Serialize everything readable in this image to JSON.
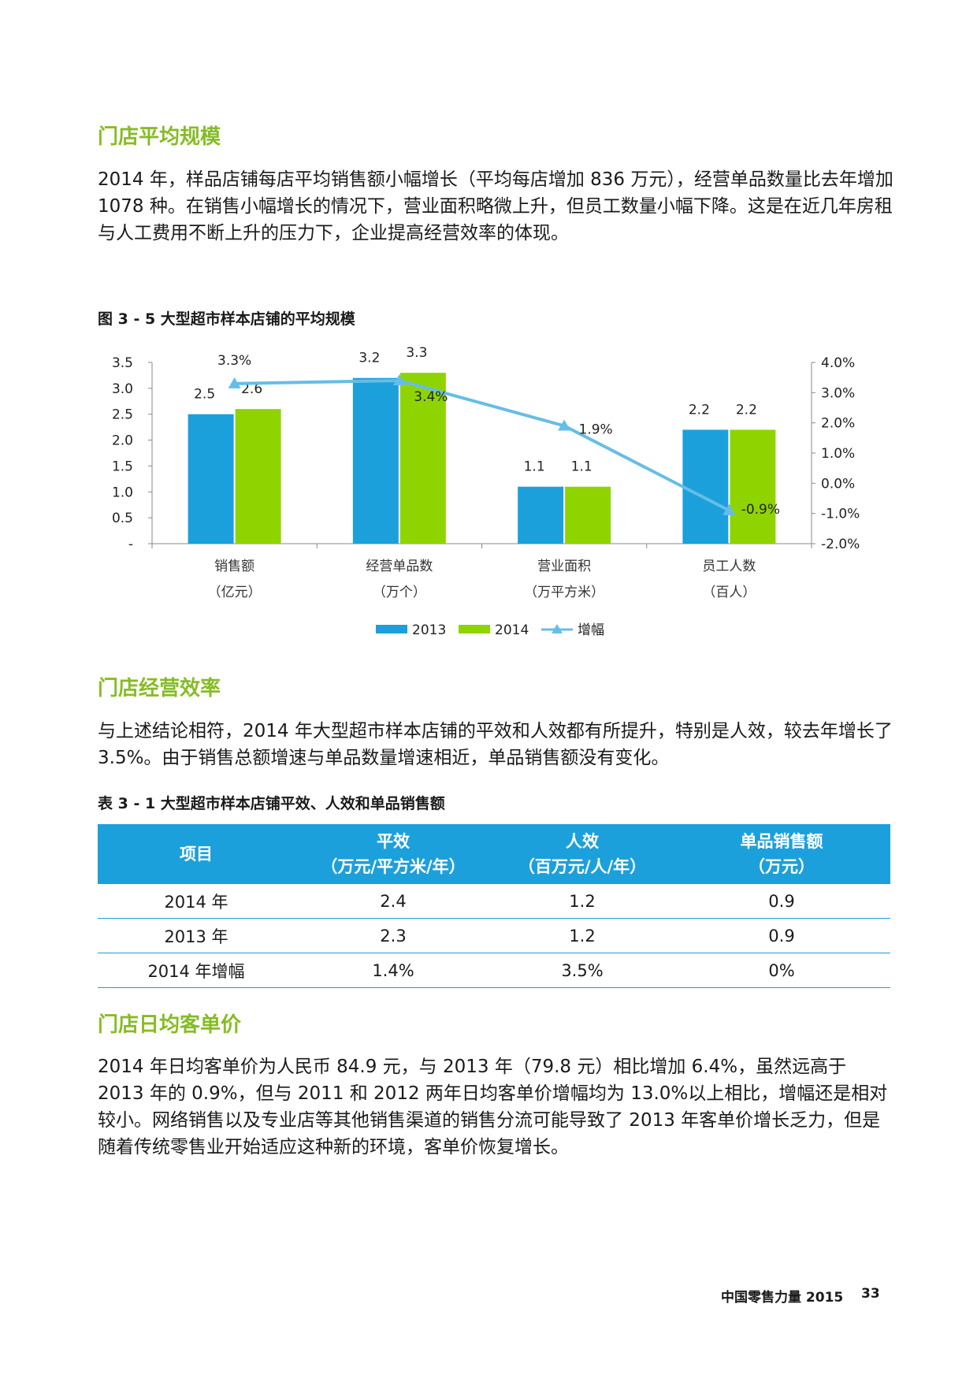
{
  "sections": {
    "s1_title": "门店平均规模",
    "s1_para": "2014 年，样品店铺每店平均销售额小幅增长（平均每店增加 836 万元），经营单品数量比去年增加 1078 种。在销售小幅增长的情况下，营业面积略微上升，但员工数量小幅下降。这是在近几年房租与人工费用不断上升的压力下，企业提高经营效率的体现。",
    "s2_title": "门店经营效率",
    "s2_para": "与上述结论相符，2014 年大型超市样本店铺的平效和人效都有所提升，特别是人效，较去年增长了 3.5%。由于销售总额增速与单品数量增速相近，单品销售额没有变化。",
    "s3_title": "门店日均客单价",
    "s3_para": "2014 年日均客单价为人民币 84.9 元，与 2013 年（79.8 元）相比增加 6.4%，虽然远高于 2013 年的 0.9%，但与 2011 和 2012 两年日均客单价增幅均为 13.0%以上相比，增幅还是相对较小。网络销售以及专业店等其他销售渠道的销售分流可能导致了 2013 年客单价增长乏力，但是随着传统零售业开始适应这种新的环境，客单价恢复增长。"
  },
  "figure_caption": "图 3 - 5 大型超市样本店铺的平均规模",
  "chart_data": {
    "type": "bar",
    "categories": [
      "销售额",
      "经营单品数",
      "营业面积",
      "员工人数"
    ],
    "category_units": [
      "（亿元）",
      "（万个）",
      "（万平方米）",
      "（百人）"
    ],
    "series": [
      {
        "name": "2013",
        "values": [
          2.5,
          3.2,
          1.1,
          2.2
        ],
        "labels": [
          "2.5",
          "3.2",
          "1.1",
          "2.2"
        ],
        "color": "#1ca0dc"
      },
      {
        "name": "2014",
        "values": [
          2.6,
          3.3,
          1.1,
          2.2
        ],
        "labels": [
          "2.6",
          "3.3",
          "1.1",
          "2.2"
        ],
        "color": "#8fd400"
      }
    ],
    "line_series": {
      "name": "增幅",
      "values": [
        3.3,
        3.4,
        1.9,
        -0.9
      ],
      "labels": [
        "3.3%",
        "3.4%",
        "1.9%",
        "-0.9%"
      ],
      "color": "#66bde6",
      "axis": "right"
    },
    "ylim": [
      0,
      3.5
    ],
    "y_ticks": [
      "-",
      "0.5",
      "1.0",
      "1.5",
      "2.0",
      "2.5",
      "3.0",
      "3.5"
    ],
    "y2lim": [
      -2.0,
      4.0
    ],
    "y2_ticks": [
      "-2.0%",
      "-1.0%",
      "0.0%",
      "1.0%",
      "2.0%",
      "3.0%",
      "4.0%"
    ],
    "legend_position": "bottom",
    "grid": false
  },
  "table_caption": "表 3 - 1 大型超市样本店铺平效、人效和单品销售额",
  "table": {
    "headers": [
      {
        "line1": "项目",
        "line2": ""
      },
      {
        "line1": "平效",
        "line2": "（万元/平方米/年）"
      },
      {
        "line1": "人效",
        "line2": "（百万元/人/年）"
      },
      {
        "line1": "单品销售额",
        "line2": "（万元）"
      }
    ],
    "rows": [
      [
        "2014 年",
        "2.4",
        "1.2",
        "0.9"
      ],
      [
        "2013 年",
        "2.3",
        "1.2",
        "0.9"
      ],
      [
        "2014 年增幅",
        "1.4%",
        "3.5%",
        "0%"
      ]
    ]
  },
  "footer": {
    "title": "中国零售力量 2015",
    "page": "33"
  }
}
